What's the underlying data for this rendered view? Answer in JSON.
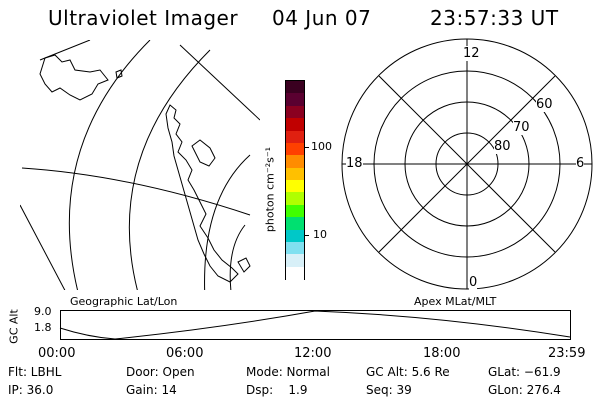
{
  "header": {
    "title": "Ultraviolet Imager",
    "date": "04 Jun 07",
    "time": "23:57:33 UT"
  },
  "colorbar": {
    "unit_label": "photon cm⁻²s⁻¹",
    "ticks": [
      "100",
      "10"
    ],
    "colors": [
      "#3a0020",
      "#5a0030",
      "#8a0020",
      "#c00000",
      "#e02010",
      "#ff4000",
      "#ff8c00",
      "#ffc000",
      "#ffff00",
      "#b0ff00",
      "#40ff00",
      "#00e070",
      "#00c8c8",
      "#80e0f0",
      "#d8f0f8",
      "#ffffff"
    ]
  },
  "polar": {
    "mlt_labels": [
      "12",
      "18",
      "6",
      "0"
    ],
    "mlat_labels": [
      "80",
      "70",
      "60"
    ]
  },
  "timeline": {
    "y_axis_label": "GC Alt",
    "y_ticks": [
      "9.0",
      "1.8"
    ],
    "left_title": "Geographic Lat/Lon",
    "right_title": "Apex MLat/MLT",
    "x_ticks": [
      "00:00",
      "06:00",
      "12:00",
      "18:00",
      "23:59"
    ]
  },
  "status": {
    "row1": {
      "flt": "Flt: LBHL",
      "door": "Door: Open",
      "mode": "Mode: Normal",
      "gc_alt": "GC Alt: 5.6 Re",
      "glat": "GLat: −61.9"
    },
    "row2": {
      "ip": "IP: 36.0",
      "gain": "Gain: 14",
      "dsp": "Dsp:    1.9",
      "seq": "Seq: 39",
      "glon": "GLon: 276.4"
    }
  }
}
